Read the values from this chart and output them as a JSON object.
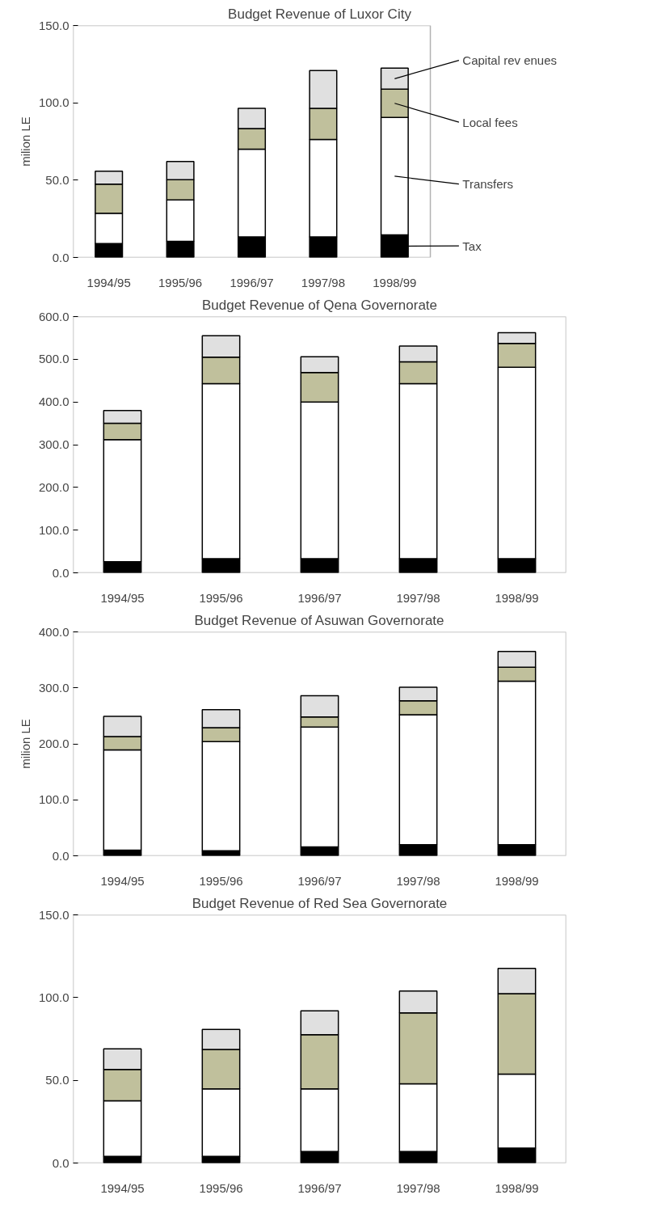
{
  "chart_data": [
    {
      "type": "bar",
      "stacked": true,
      "title": "Budget Revenue of Luxor City",
      "ylabel": "milion LE",
      "grid": false,
      "categories": [
        "1994/95",
        "1995/96",
        "1996/97",
        "1997/98",
        "1998/99"
      ],
      "ylim": [
        0,
        150
      ],
      "yticks": [
        {
          "value": 0,
          "label": "0.0"
        },
        {
          "value": 50,
          "label": "50.0"
        },
        {
          "value": 100,
          "label": "100.0"
        },
        {
          "value": 150,
          "label": "150.0"
        }
      ],
      "series": [
        {
          "name": "Tax",
          "color": "#000000",
          "values": [
            9,
            10.4,
            13.3,
            13.3,
            14.6
          ]
        },
        {
          "name": "Transfers",
          "color": "#ffffff",
          "values": [
            19.6,
            26.9,
            56.8,
            63,
            76
          ]
        },
        {
          "name": "Local fees",
          "color": "#c0c09c",
          "values": [
            18.8,
            13,
            13.3,
            20.1,
            18.2
          ]
        },
        {
          "name": "Capital rev enues",
          "color": "#e0e0e0",
          "values": [
            8.4,
            11.7,
            13,
            24.4,
            13.6
          ]
        }
      ]
    },
    {
      "type": "bar",
      "stacked": true,
      "title": "Budget Revenue of Qena Governorate",
      "grid": false,
      "categories": [
        "1994/95",
        "1995/96",
        "1996/97",
        "1997/98",
        "1998/99"
      ],
      "ylim": [
        0,
        600
      ],
      "yticks": [
        {
          "value": 0,
          "label": "0.0"
        },
        {
          "value": 100,
          "label": "100.0"
        },
        {
          "value": 200,
          "label": "200.0"
        },
        {
          "value": 300,
          "label": "300.0"
        },
        {
          "value": 400,
          "label": "400.0"
        },
        {
          "value": 500,
          "label": "500.0"
        },
        {
          "value": 600,
          "label": "600.0"
        }
      ],
      "series": [
        {
          "color": "#000000",
          "values": [
            26,
            33,
            33,
            33,
            33
          ]
        },
        {
          "color": "#ffffff",
          "values": [
            286,
            410,
            367,
            410,
            448
          ]
        },
        {
          "color": "#c0c09c",
          "values": [
            38,
            62,
            69,
            51,
            56
          ]
        },
        {
          "color": "#e0e0e0",
          "values": [
            30,
            50,
            37,
            37,
            25
          ]
        }
      ]
    },
    {
      "type": "bar",
      "stacked": true,
      "title": "Budget Revenue of Asuwan Governorate",
      "ylabel": "milion LE",
      "grid": false,
      "categories": [
        "1994/95",
        "1995/96",
        "1996/97",
        "1997/98",
        "1998/99"
      ],
      "ylim": [
        0,
        400
      ],
      "yticks": [
        {
          "value": 0,
          "label": "0.0"
        },
        {
          "value": 100,
          "label": "100.0"
        },
        {
          "value": 200,
          "label": "200.0"
        },
        {
          "value": 300,
          "label": "300.0"
        },
        {
          "value": 400,
          "label": "400.0"
        }
      ],
      "series": [
        {
          "color": "#000000",
          "values": [
            10,
            9,
            16,
            20,
            20
          ]
        },
        {
          "color": "#ffffff",
          "values": [
            179,
            195,
            214,
            232,
            292
          ]
        },
        {
          "color": "#c0c09c",
          "values": [
            24,
            25,
            18,
            25,
            25
          ]
        },
        {
          "color": "#e0e0e0",
          "values": [
            36,
            32,
            38,
            24,
            28
          ]
        }
      ]
    },
    {
      "type": "bar",
      "stacked": true,
      "title": "Budget Revenue of Red Sea Governorate",
      "grid": false,
      "categories": [
        "1994/95",
        "1995/96",
        "1996/97",
        "1997/98",
        "1998/99"
      ],
      "ylim": [
        0,
        150
      ],
      "yticks": [
        {
          "value": 0,
          "label": "0.0"
        },
        {
          "value": 50,
          "label": "50.0"
        },
        {
          "value": 100,
          "label": "100.0"
        },
        {
          "value": 150,
          "label": "150.0"
        }
      ],
      "series": [
        {
          "color": "#000000",
          "values": [
            4,
            4,
            7,
            7,
            9
          ]
        },
        {
          "color": "#ffffff",
          "values": [
            33.6,
            40.8,
            37.8,
            40.9,
            44.8
          ]
        },
        {
          "color": "#c0c09c",
          "values": [
            19,
            23.8,
            32.8,
            42.8,
            48.6
          ]
        },
        {
          "color": "#e0e0e0",
          "values": [
            12.4,
            12.1,
            14.4,
            13.3,
            15.2
          ]
        }
      ]
    }
  ]
}
